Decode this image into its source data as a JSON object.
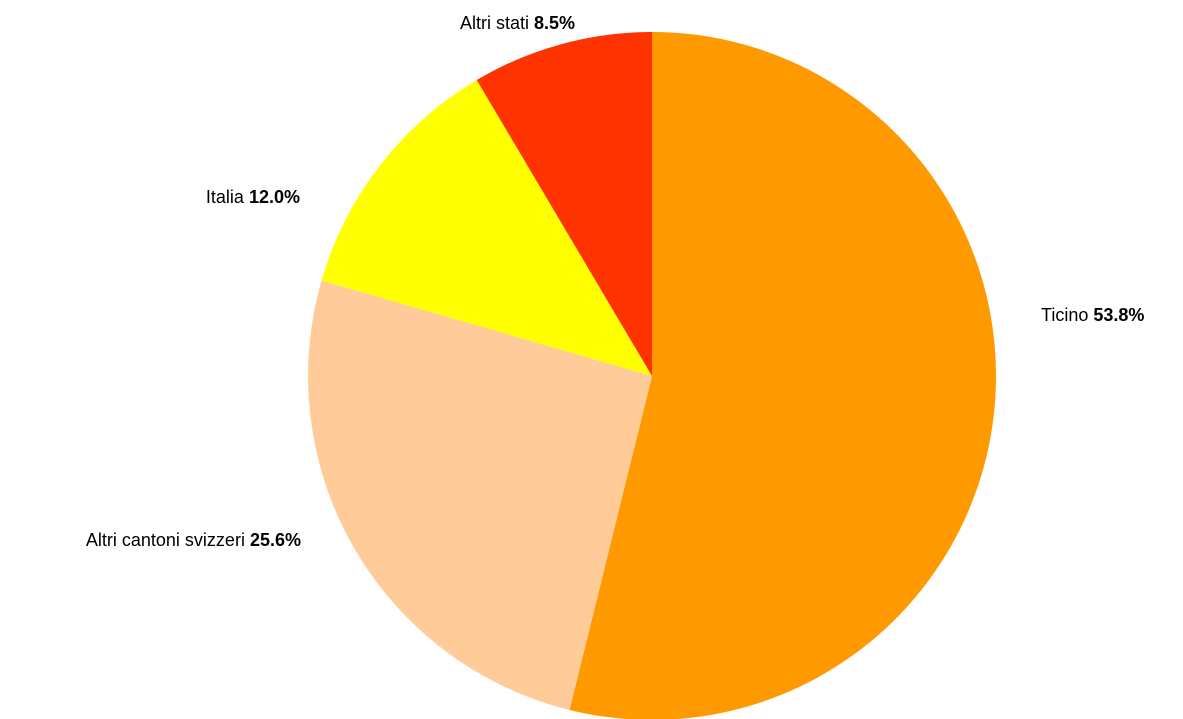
{
  "chart_data": {
    "type": "pie",
    "slices": [
      {
        "label": "Ticino",
        "value": 53.8,
        "value_text": "53.8%",
        "color": "#FF9900"
      },
      {
        "label": "Altri cantoni svizzeri",
        "value": 25.6,
        "value_text": "25.6%",
        "color": "#FFCC99"
      },
      {
        "label": "Italia",
        "value": 12.0,
        "value_text": "12.0%",
        "color": "#FFFF00"
      },
      {
        "label": "Altri stati",
        "value": 8.5,
        "value_text": "8.5%",
        "color": "#FF3300"
      }
    ],
    "start": "12 o'clock",
    "direction": "clockwise",
    "legend": "none"
  }
}
